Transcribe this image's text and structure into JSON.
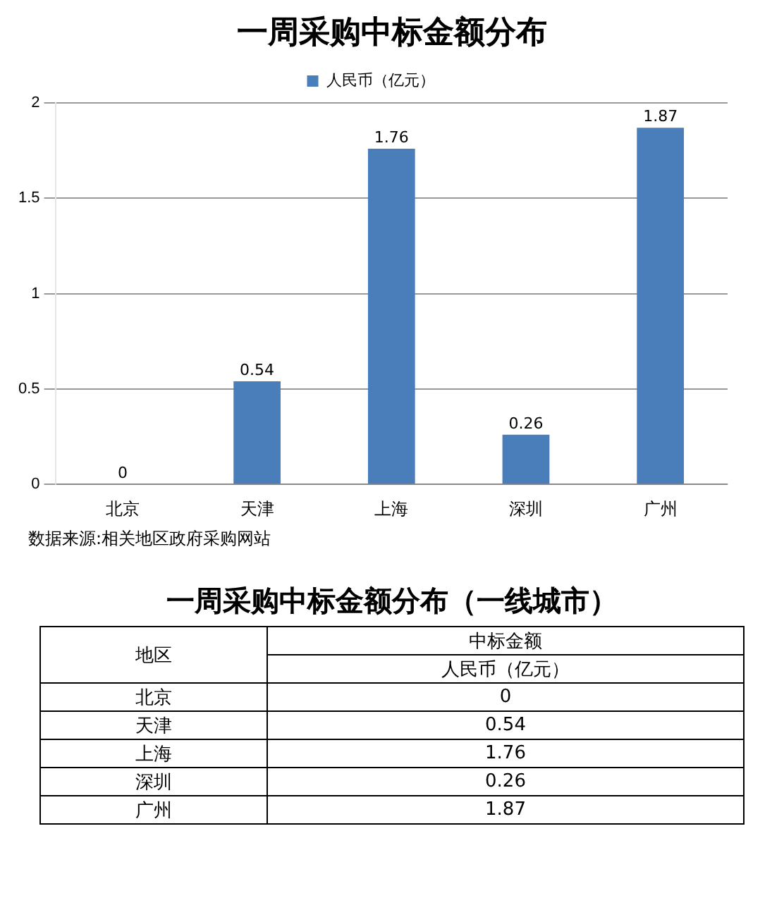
{
  "chart_data": {
    "type": "bar",
    "title": "一周采购中标金额分布",
    "categories": [
      "北京",
      "天津",
      "上海",
      "深圳",
      "广州"
    ],
    "series": [
      {
        "name": "人民币（亿元）",
        "color": "#4a7ebb",
        "values": [
          0,
          0.54,
          1.76,
          0.26,
          1.87
        ],
        "value_labels": [
          "0",
          "0.54",
          "1.76",
          "0.26",
          "1.87"
        ]
      }
    ],
    "ylim": [
      0,
      2
    ],
    "yticks": [
      0,
      0.5,
      1,
      1.5,
      2
    ],
    "grid": "y",
    "legend": "top",
    "annotations": [
      "数据来源:相关地区政府采购网站",
      "一周采购中标金额分布（一线城市）",
      "地区",
      "中标金额"
    ]
  }
}
